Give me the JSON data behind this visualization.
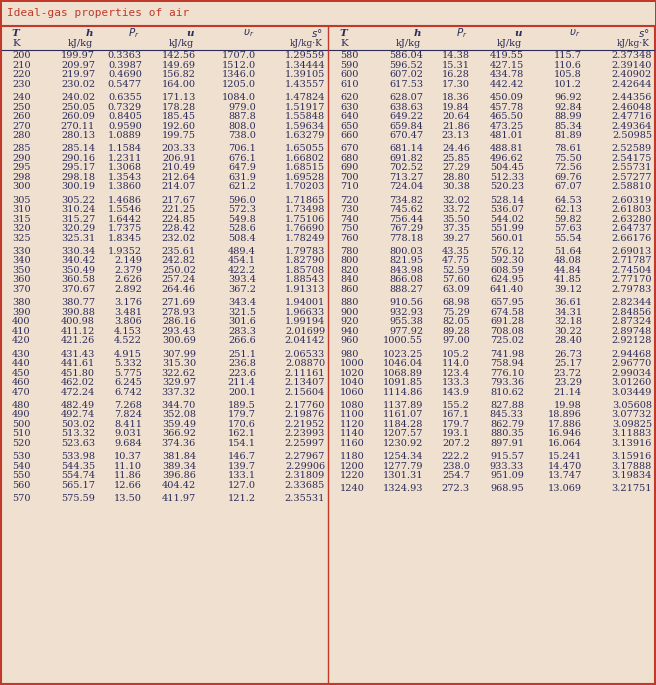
{
  "title": "Ideal-gas properties of air",
  "title_color": "#c0392b",
  "bg_color": "#f0e0d0",
  "header_line_color": "#c0392b",
  "text_color": "#2c2c5a",
  "left_data": [
    [
      200,
      199.97,
      "0.3363",
      142.56,
      "1707.0",
      1.29559
    ],
    [
      210,
      209.97,
      "0.3987",
      149.69,
      "1512.0",
      1.34444
    ],
    [
      220,
      219.97,
      "0.4690",
      156.82,
      "1346.0",
      1.39105
    ],
    [
      230,
      230.02,
      "0.5477",
      164.0,
      "1205.0",
      1.43557
    ],
    [
      240,
      240.02,
      "0.6355",
      171.13,
      "1084.0",
      1.47824
    ],
    [
      250,
      250.05,
      "0.7329",
      178.28,
      "979.0",
      1.51917
    ],
    [
      260,
      260.09,
      "0.8405",
      185.45,
      "887.8",
      1.55848
    ],
    [
      270,
      270.11,
      "0.9590",
      192.6,
      "808.0",
      1.59634
    ],
    [
      280,
      280.13,
      "1.0889",
      199.75,
      "738.0",
      1.63279
    ],
    [
      285,
      285.14,
      "1.1584",
      203.33,
      "706.1",
      1.65055
    ],
    [
      290,
      290.16,
      "1.2311",
      206.91,
      "676.1",
      1.66802
    ],
    [
      295,
      295.17,
      "1.3068",
      210.49,
      "647.9",
      1.68515
    ],
    [
      298,
      298.18,
      "1.3543",
      212.64,
      "631.9",
      1.69528
    ],
    [
      300,
      300.19,
      "1.3860",
      214.07,
      "621.2",
      1.70203
    ],
    [
      305,
      305.22,
      "1.4686",
      217.67,
      "596.0",
      1.71865
    ],
    [
      310,
      310.24,
      "1.5546",
      221.25,
      "572.3",
      1.73498
    ],
    [
      315,
      315.27,
      "1.6442",
      224.85,
      "549.8",
      1.75106
    ],
    [
      320,
      320.29,
      "1.7375",
      228.42,
      "528.6",
      1.7669
    ],
    [
      325,
      325.31,
      "1.8345",
      232.02,
      "508.4",
      1.78249
    ],
    [
      330,
      330.34,
      "1.9352",
      235.61,
      "489.4",
      1.79783
    ],
    [
      340,
      340.42,
      "2.149",
      242.82,
      "454.1",
      1.8279
    ],
    [
      350,
      350.49,
      "2.379",
      250.02,
      "422.2",
      1.85708
    ],
    [
      360,
      360.58,
      "2.626",
      257.24,
      "393.4",
      1.88543
    ],
    [
      370,
      370.67,
      "2.892",
      264.46,
      "367.2",
      1.91313
    ],
    [
      380,
      380.77,
      "3.176",
      271.69,
      "343.4",
      1.94001
    ],
    [
      390,
      390.88,
      "3.481",
      278.93,
      "321.5",
      1.96633
    ],
    [
      400,
      400.98,
      "3.806",
      286.16,
      "301.6",
      1.99194
    ],
    [
      410,
      411.12,
      "4.153",
      293.43,
      "283.3",
      2.01699
    ],
    [
      420,
      421.26,
      "4.522",
      300.69,
      "266.6",
      2.04142
    ],
    [
      430,
      431.43,
      "4.915",
      307.99,
      "251.1",
      2.06533
    ],
    [
      440,
      441.61,
      "5.332",
      315.3,
      "236.8",
      2.0887
    ],
    [
      450,
      451.8,
      "5.775",
      322.62,
      "223.6",
      2.11161
    ],
    [
      460,
      462.02,
      "6.245",
      329.97,
      "211.4",
      2.13407
    ],
    [
      470,
      472.24,
      "6.742",
      337.32,
      "200.1",
      2.15604
    ],
    [
      480,
      482.49,
      "7.268",
      344.7,
      "189.5",
      2.1776
    ],
    [
      490,
      492.74,
      "7.824",
      352.08,
      "179.7",
      2.19876
    ],
    [
      500,
      503.02,
      "8.411",
      359.49,
      "170.6",
      2.21952
    ],
    [
      510,
      513.32,
      "9.031",
      366.92,
      "162.1",
      2.23993
    ],
    [
      520,
      523.63,
      "9.684",
      374.36,
      "154.1",
      2.25997
    ],
    [
      530,
      533.98,
      "10.37",
      381.84,
      "146.7",
      2.27967
    ],
    [
      540,
      544.35,
      "11.10",
      389.34,
      "139.7",
      2.29906
    ],
    [
      550,
      554.74,
      "11.86",
      396.86,
      "133.1",
      2.31809
    ],
    [
      560,
      565.17,
      "12.66",
      404.42,
      "127.0",
      2.33685
    ],
    [
      570,
      575.59,
      "13.50",
      411.97,
      "121.2",
      2.35531
    ]
  ],
  "right_data": [
    [
      580,
      586.04,
      "14.38",
      419.55,
      "115.7",
      2.37348
    ],
    [
      590,
      596.52,
      "15.31",
      427.15,
      "110.6",
      2.3914
    ],
    [
      600,
      607.02,
      "16.28",
      434.78,
      "105.8",
      2.40902
    ],
    [
      610,
      617.53,
      "17.30",
      442.42,
      "101.2",
      2.42644
    ],
    [
      620,
      628.07,
      "18.36",
      450.09,
      "96.92",
      2.44356
    ],
    [
      630,
      638.63,
      "19.84",
      457.78,
      "92.84",
      2.46048
    ],
    [
      640,
      649.22,
      "20.64",
      465.5,
      "88.99",
      2.47716
    ],
    [
      650,
      659.84,
      "21.86",
      473.25,
      "85.34",
      2.49364
    ],
    [
      660,
      670.47,
      "23.13",
      481.01,
      "81.89",
      2.50985
    ],
    [
      670,
      681.14,
      "24.46",
      488.81,
      "78.61",
      2.52589
    ],
    [
      680,
      691.82,
      "25.85",
      496.62,
      "75.50",
      2.54175
    ],
    [
      690,
      702.52,
      "27.29",
      504.45,
      "72.56",
      2.55731
    ],
    [
      700,
      713.27,
      "28.80",
      512.33,
      "69.76",
      2.57277
    ],
    [
      710,
      724.04,
      "30.38",
      520.23,
      "67.07",
      2.5881
    ],
    [
      720,
      734.82,
      "32.02",
      528.14,
      "64.53",
      2.60319
    ],
    [
      730,
      745.62,
      "33.72",
      536.07,
      "62.13",
      2.61803
    ],
    [
      740,
      756.44,
      "35.50",
      544.02,
      "59.82",
      2.6328
    ],
    [
      750,
      767.29,
      "37.35",
      551.99,
      "57.63",
      2.64737
    ],
    [
      760,
      778.18,
      "39.27",
      560.01,
      "55.54",
      2.66176
    ],
    [
      780,
      800.03,
      "43.35",
      576.12,
      "51.64",
      2.69013
    ],
    [
      800,
      821.95,
      "47.75",
      592.3,
      "48.08",
      2.71787
    ],
    [
      820,
      843.98,
      "52.59",
      608.59,
      "44.84",
      2.74504
    ],
    [
      840,
      866.08,
      "57.60",
      624.95,
      "41.85",
      2.7717
    ],
    [
      860,
      888.27,
      "63.09",
      641.4,
      "39.12",
      2.79783
    ],
    [
      880,
      910.56,
      "68.98",
      657.95,
      "36.61",
      2.82344
    ],
    [
      900,
      932.93,
      "75.29",
      674.58,
      "34.31",
      2.84856
    ],
    [
      920,
      955.38,
      "82.05",
      691.28,
      "32.18",
      2.87324
    ],
    [
      940,
      977.92,
      "89.28",
      708.08,
      "30.22",
      2.89748
    ],
    [
      960,
      1000.55,
      "97.00",
      725.02,
      "28.40",
      2.92128
    ],
    [
      980,
      1023.25,
      "105.2",
      741.98,
      "26.73",
      2.94468
    ],
    [
      1000,
      1046.04,
      "114.0",
      758.94,
      "25.17",
      2.9677
    ],
    [
      1020,
      1068.89,
      "123.4",
      776.1,
      "23.72",
      2.99034
    ],
    [
      1040,
      1091.85,
      "133.3",
      793.36,
      "23.29",
      3.0126
    ],
    [
      1060,
      1114.86,
      "143.9",
      810.62,
      "21.14",
      3.03449
    ],
    [
      1080,
      1137.89,
      "155.2",
      827.88,
      "19.98",
      3.05608
    ],
    [
      1100,
      1161.07,
      "167.1",
      845.33,
      "18.896",
      3.07732
    ],
    [
      1120,
      1184.28,
      "179.7",
      862.79,
      "17.886",
      3.09825
    ],
    [
      1140,
      1207.57,
      "193.1",
      880.35,
      "16.946",
      3.11883
    ],
    [
      1160,
      1230.92,
      "207.2",
      897.91,
      "16.064",
      3.13916
    ],
    [
      1180,
      1254.34,
      "222.2",
      915.57,
      "15.241",
      3.15916
    ],
    [
      1200,
      1277.79,
      "238.0",
      933.33,
      "14.470",
      3.17888
    ],
    [
      1220,
      1301.31,
      "254.7",
      951.09,
      "13.747",
      3.19834
    ],
    [
      1240,
      1324.93,
      "272.3",
      968.95,
      "13.069",
      3.21751
    ]
  ],
  "left_group_ends": [
    4,
    9,
    14,
    19,
    24,
    29,
    34,
    39,
    43
  ],
  "right_group_ends": [
    4,
    9,
    14,
    19,
    24,
    29,
    34,
    39,
    42
  ]
}
